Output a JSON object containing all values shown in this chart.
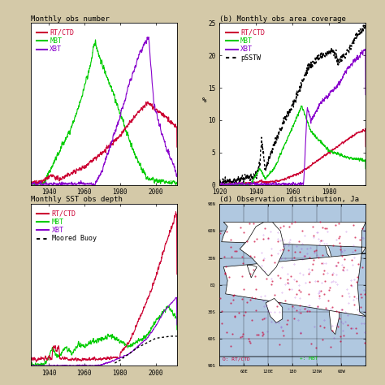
{
  "title_a": "Monthly obs number",
  "title_b": "(b) Monthly obs area coverage",
  "title_c": "Monthly SST obs depth",
  "title_d": "(d) Observation distribution, Ja",
  "fig_bg": "#d4c9a8",
  "panel_bg": "#ffffff",
  "colors": {
    "RT_CTD": "#cc0033",
    "MBT": "#00cc00",
    "XBT": "#8800cc",
    "pSSTW": "#000000",
    "moored_buoy": "#000000",
    "land": "#000000"
  },
  "font_size": 6.5
}
